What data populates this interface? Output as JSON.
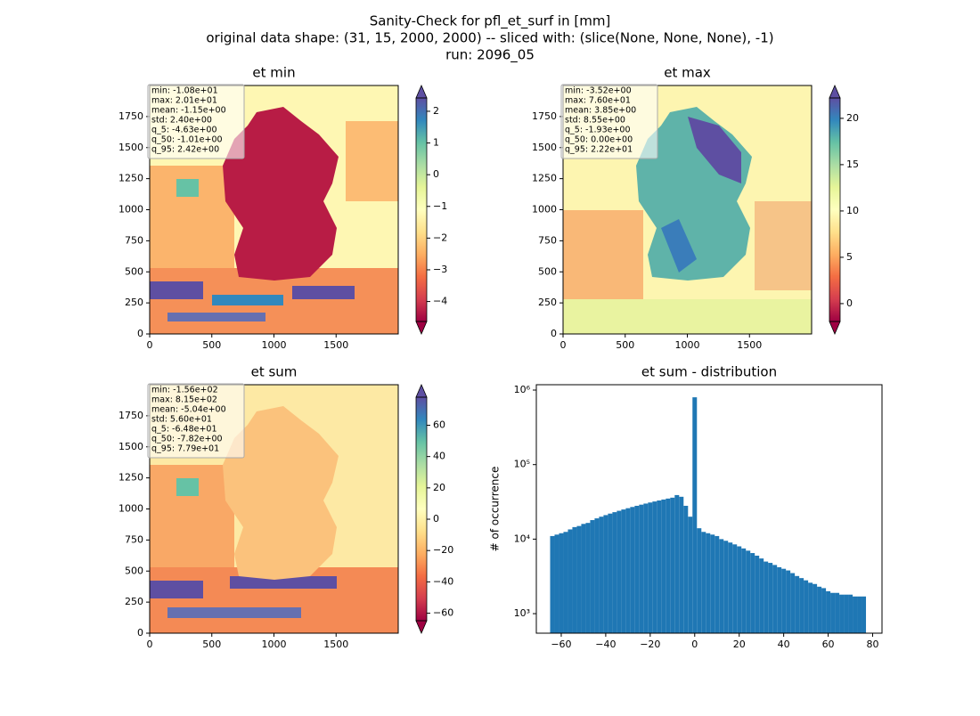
{
  "suptitle": [
    "Sanity-Check for pfl_et_surf in [mm]",
    "original data shape: (31, 15, 2000, 2000) -- sliced with: (slice(None, None, None), -1)",
    "run: 2096_05"
  ],
  "chart_data": [
    {
      "type": "heatmap",
      "title": "et min",
      "colormap": "Spectral",
      "xlim": [
        0,
        2000
      ],
      "ylim": [
        0,
        2000
      ],
      "xticks": [
        0,
        500,
        1000,
        1500
      ],
      "yticks": [
        0,
        250,
        500,
        750,
        1000,
        1250,
        1500,
        1750
      ],
      "colorbar": {
        "lim": [
          -4.63,
          2.42
        ],
        "ticks": [
          {
            "value": -4,
            "label": "−4"
          },
          {
            "value": -3,
            "label": "−3"
          },
          {
            "value": -2,
            "label": "−2"
          },
          {
            "value": -1,
            "label": "−1"
          },
          0,
          1,
          2
        ]
      },
      "stats": [
        "min: -1.08e+01",
        "max: 2.01e+01",
        "mean: -1.15e+00",
        "std: 2.40e+00",
        "q_5: -4.63e+00",
        "q_50: -1.01e+00",
        "q_95: 2.42e+00"
      ]
    },
    {
      "type": "heatmap",
      "title": "et max",
      "colormap": "Spectral",
      "xlim": [
        0,
        2000
      ],
      "ylim": [
        0,
        2000
      ],
      "xticks": [
        0,
        500,
        1000,
        1500
      ],
      "yticks": [
        0,
        250,
        500,
        750,
        1000,
        1250,
        1500,
        1750
      ],
      "colorbar": {
        "lim": [
          -1.93,
          22.2
        ],
        "ticks": [
          0,
          5,
          10,
          15,
          20
        ]
      },
      "stats": [
        "min: -3.52e+00",
        "max: 7.60e+01",
        "mean: 3.85e+00",
        "std: 8.55e+00",
        "q_5: -1.93e+00",
        "q_50: 0.00e+00",
        "q_95: 2.22e+01"
      ]
    },
    {
      "type": "heatmap",
      "title": "et sum",
      "colormap": "Spectral",
      "xlim": [
        0,
        2000
      ],
      "ylim": [
        0,
        2000
      ],
      "xticks": [
        0,
        500,
        1000,
        1500
      ],
      "yticks": [
        0,
        250,
        500,
        750,
        1000,
        1250,
        1500,
        1750
      ],
      "colorbar": {
        "lim": [
          -64.8,
          77.9
        ],
        "ticks": [
          {
            "value": -60,
            "label": "−60"
          },
          {
            "value": -40,
            "label": "−40"
          },
          {
            "value": -20,
            "label": "−20"
          },
          0,
          20,
          40,
          60
        ]
      },
      "stats": [
        "min: -1.56e+02",
        "max: 8.15e+02",
        "mean: -5.04e+00",
        "std: 5.60e+01",
        "q_5: -6.48e+01",
        "q_50: -7.82e+00",
        "q_95: 7.79e+01"
      ]
    },
    {
      "type": "histogram",
      "title": "et sum - distribution",
      "ylabel": "# of occurrence",
      "color": "#1f77b4",
      "yscale": "log",
      "xlim": [
        -71.2,
        84.2
      ],
      "ylim": [
        547,
        1180000
      ],
      "xticks": [
        {
          "value": -60,
          "label": "−60"
        },
        {
          "value": -40,
          "label": "−40"
        },
        {
          "value": -20,
          "label": "−20"
        },
        0,
        20,
        40,
        60,
        80
      ],
      "yticks": [
        {
          "value": 1000,
          "label": "10³"
        },
        {
          "value": 10000,
          "label": "10⁴"
        },
        {
          "value": 100000,
          "label": "10⁵"
        },
        {
          "value": 1000000,
          "label": "10⁶"
        }
      ],
      "bins": [
        -65,
        -63,
        -61,
        -59,
        -57,
        -55,
        -53,
        -51,
        -49,
        -47,
        -45,
        -43,
        -41,
        -39,
        -37,
        -35,
        -33,
        -31,
        -29,
        -27,
        -25,
        -23,
        -21,
        -19,
        -17,
        -15,
        -13,
        -11,
        -9,
        -7,
        -5,
        -3,
        -1,
        1,
        3,
        5,
        7,
        9,
        11,
        13,
        15,
        17,
        19,
        21,
        23,
        25,
        27,
        29,
        31,
        33,
        35,
        37,
        39,
        41,
        43,
        45,
        47,
        49,
        51,
        53,
        55,
        57,
        59,
        61,
        63,
        65,
        67,
        69,
        71,
        73,
        75,
        77
      ],
      "values": [
        11000,
        11500,
        12000,
        12500,
        13500,
        14500,
        15000,
        16000,
        16500,
        18000,
        19000,
        20000,
        21000,
        22000,
        23000,
        24000,
        25000,
        26000,
        27000,
        28000,
        29000,
        30000,
        31000,
        32000,
        33000,
        34000,
        35000,
        36000,
        39000,
        37000,
        28000,
        20000,
        800000,
        14000,
        12500,
        12000,
        11500,
        11000,
        10000,
        9500,
        9000,
        8500,
        8000,
        7500,
        7000,
        6500,
        6000,
        5500,
        5000,
        4800,
        4500,
        4200,
        4000,
        3800,
        3500,
        3200,
        3000,
        2800,
        2600,
        2500,
        2300,
        2200,
        2000,
        1900,
        1900,
        1800,
        1800,
        1800,
        1700,
        1700,
        1700
      ]
    }
  ]
}
